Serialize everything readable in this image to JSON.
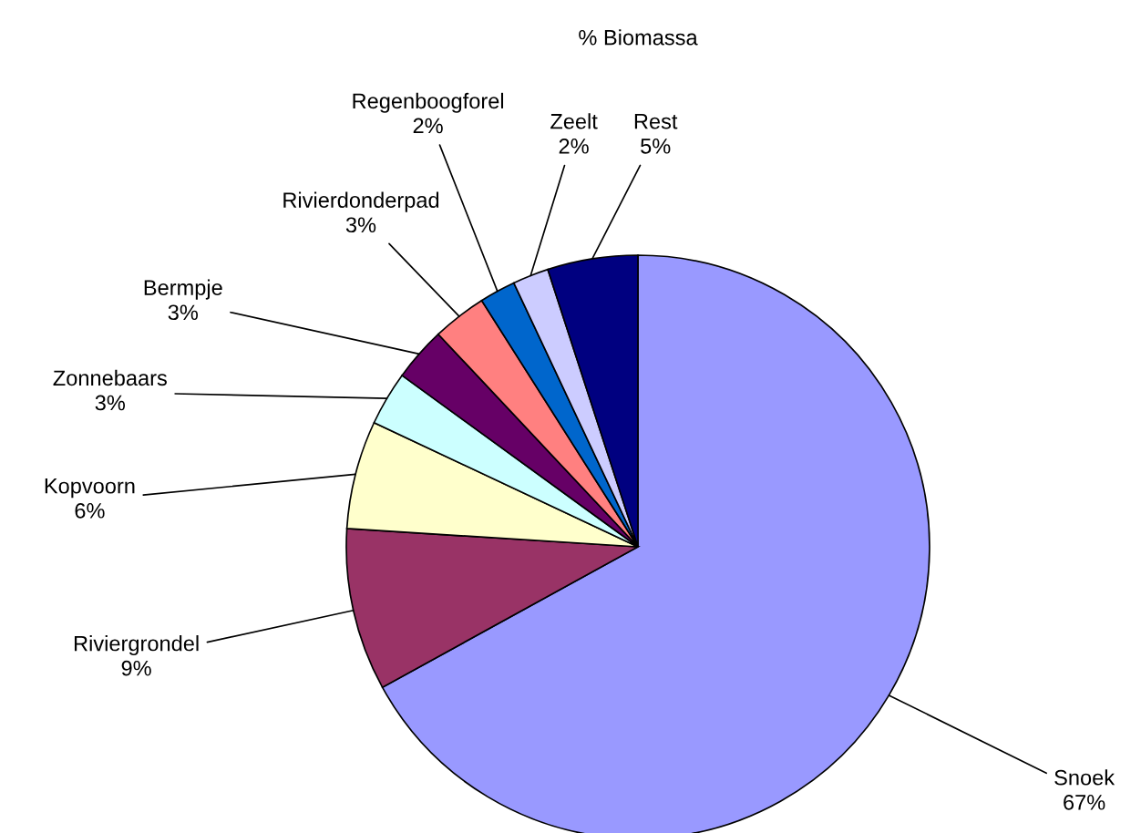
{
  "chart_data": {
    "type": "pie",
    "title": "% Biomassa",
    "categories": [
      "Snoek",
      "Riviergrondel",
      "Kopvoorn",
      "Zonnebaars",
      "Bermpje",
      "Rivierdonderpad",
      "Regenboogforel",
      "Zeelt",
      "Rest"
    ],
    "values": [
      67,
      9,
      6,
      3,
      3,
      3,
      2,
      2,
      5
    ],
    "value_labels": [
      "67%",
      "9%",
      "6%",
      "3%",
      "3%",
      "3%",
      "2%",
      "2%",
      "5%"
    ],
    "colors": [
      "#9999ff",
      "#993366",
      "#ffffcc",
      "#ccffff",
      "#660066",
      "#ff8080",
      "#0066cc",
      "#ccccff",
      "#000080"
    ]
  }
}
